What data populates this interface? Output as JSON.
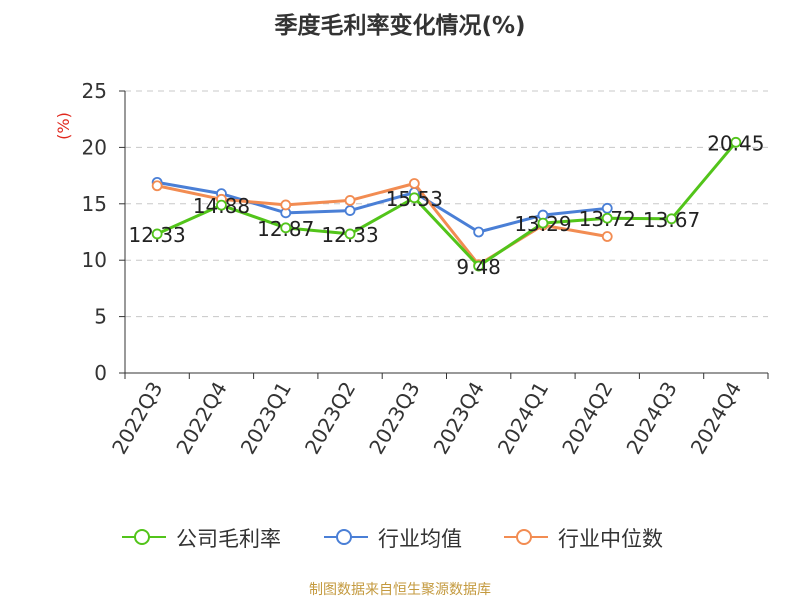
{
  "chart_data": {
    "type": "line",
    "title": "季度毛利率变化情况(%)",
    "ylabel": "(%)",
    "ylim": [
      0,
      25
    ],
    "yticks": [
      0,
      5,
      10,
      15,
      20,
      25
    ],
    "grid": true,
    "legend_position": "bottom",
    "categories": [
      "2022Q3",
      "2022Q4",
      "2023Q1",
      "2023Q2",
      "2023Q3",
      "2023Q4",
      "2024Q1",
      "2024Q2",
      "2024Q3",
      "2024Q4"
    ],
    "series": [
      {
        "name": "公司毛利率",
        "color": "#52c41a",
        "values": [
          12.33,
          14.88,
          12.87,
          12.33,
          15.53,
          9.48,
          13.29,
          13.72,
          13.67,
          20.45
        ],
        "show_labels": true
      },
      {
        "name": "行业均值",
        "color": "#4a7fd6",
        "values": [
          16.9,
          15.9,
          14.2,
          14.4,
          16.0,
          12.5,
          14.0,
          14.6,
          null,
          null
        ],
        "show_labels": false
      },
      {
        "name": "行业中位数",
        "color": "#f28c52",
        "values": [
          16.6,
          15.4,
          14.9,
          15.3,
          16.8,
          9.6,
          13.1,
          12.1,
          null,
          null
        ],
        "show_labels": false
      }
    ],
    "data_labels": [
      "12.33",
      "14.88",
      "12.87",
      "12.33",
      "15.53",
      "9.48",
      "13.29",
      "13.72",
      "13.67",
      "20.45"
    ]
  },
  "source": "制图数据来自恒生聚源数据库"
}
